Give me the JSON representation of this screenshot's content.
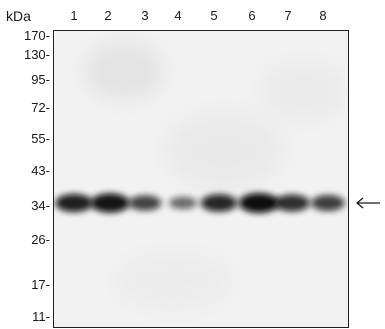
{
  "blot": {
    "unit_label": "kDa",
    "lanes": [
      "1",
      "2",
      "3",
      "4",
      "5",
      "6",
      "7",
      "8"
    ],
    "markers": [
      "170-",
      "130-",
      "95-",
      "72-",
      "55-",
      "43-",
      "34-",
      "26-",
      "17-",
      "11-"
    ],
    "band_intensities": [
      0.85,
      0.95,
      0.6,
      0.35,
      0.8,
      1.0,
      0.75,
      0.65
    ],
    "arrow_icon": "left-arrow-icon",
    "band_color": "#0d0d0d",
    "background_color": "#f2f2f2"
  }
}
